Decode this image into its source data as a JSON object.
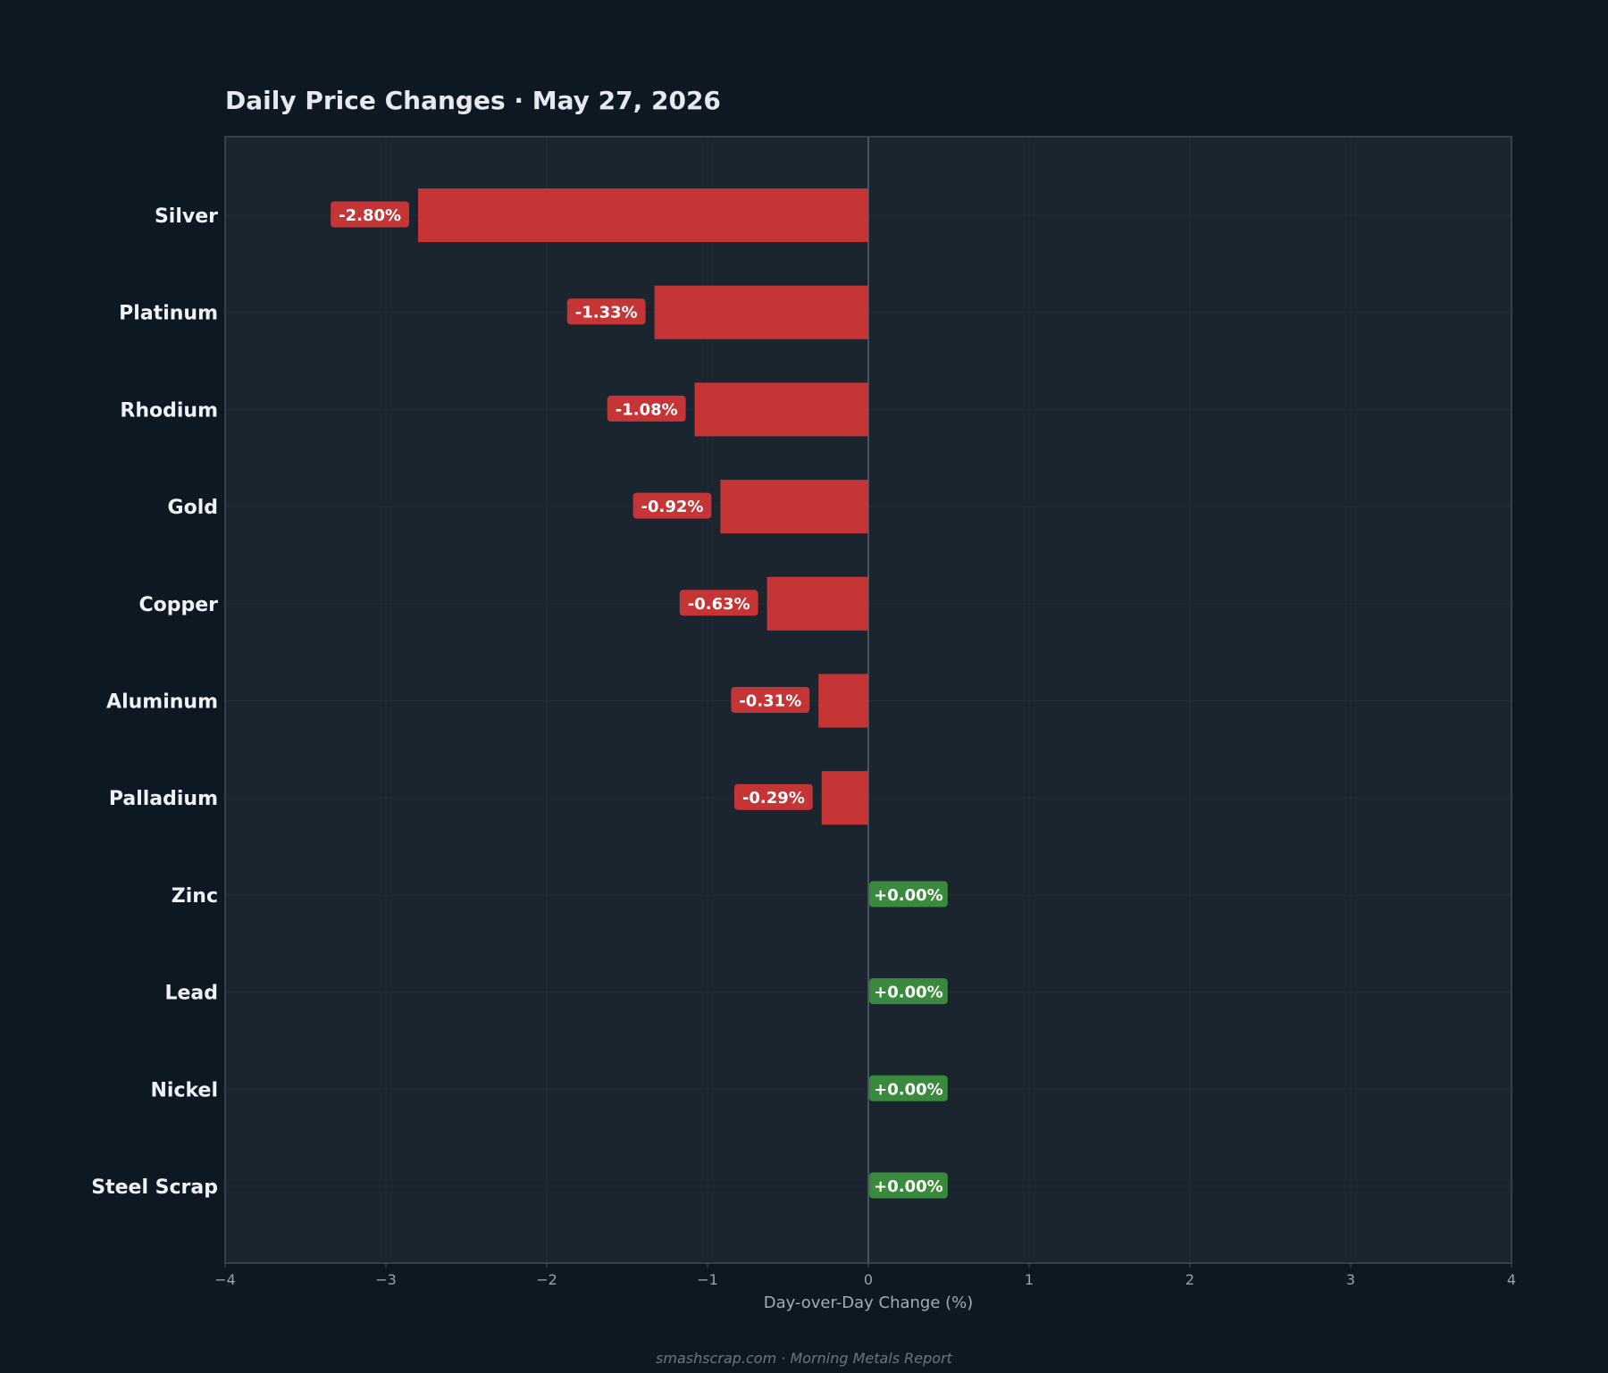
{
  "title": "Daily Price Changes  ·  May 27, 2026",
  "footer": "smashscrap.com  ·  Morning Metals Report",
  "colors": {
    "background": "#0e1822",
    "plot_background": "#1b2530",
    "negative": "#c63535",
    "positive": "#3a8a3d",
    "zero_line": "#56636f",
    "frame": "#3f4b57",
    "grid": "#222d38"
  },
  "chart_data": {
    "type": "bar",
    "orientation": "horizontal",
    "categories": [
      "Silver",
      "Platinum",
      "Rhodium",
      "Gold",
      "Copper",
      "Aluminum",
      "Palladium",
      "Zinc",
      "Lead",
      "Nickel",
      "Steel Scrap"
    ],
    "values": [
      -2.8,
      -1.33,
      -1.08,
      -0.92,
      -0.63,
      -0.31,
      -0.29,
      0.0,
      0.0,
      0.0,
      0.0
    ],
    "data_labels": [
      "-2.80%",
      "-1.33%",
      "-1.08%",
      "-0.92%",
      "-0.63%",
      "-0.31%",
      "-0.29%",
      "+0.00%",
      "+0.00%",
      "+0.00%",
      "+0.00%"
    ],
    "title": "Daily Price Changes  ·  May 27, 2026",
    "xlabel": "Day-over-Day Change (%)",
    "ylabel": "",
    "xlim": [
      -4,
      4
    ],
    "xticks": [
      -4,
      -3,
      -2,
      -1,
      0,
      1,
      2,
      3,
      4
    ],
    "xtick_labels": [
      "−4",
      "−3",
      "−2",
      "−1",
      "0",
      "1",
      "2",
      "3",
      "4"
    ],
    "grid": true,
    "legend": "none"
  }
}
